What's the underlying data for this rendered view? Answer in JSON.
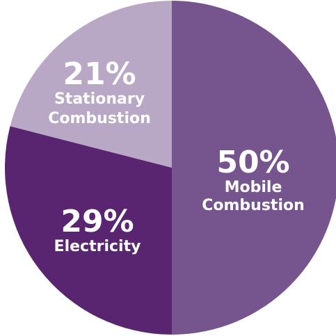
{
  "chart_data": {
    "type": "pie",
    "title": "",
    "legend": "none",
    "slices": [
      {
        "percent_label": "50%",
        "name_lines": [
          "Mobile",
          "Combustion"
        ],
        "value": 50,
        "color": "#76548d"
      },
      {
        "percent_label": "29%",
        "name_lines": [
          "Electricity"
        ],
        "value": 29,
        "color": "#5a2570"
      },
      {
        "percent_label": "21%",
        "name_lines": [
          "Stationary",
          "Combustion"
        ],
        "value": 21,
        "color": "#b9a7c6"
      }
    ]
  }
}
